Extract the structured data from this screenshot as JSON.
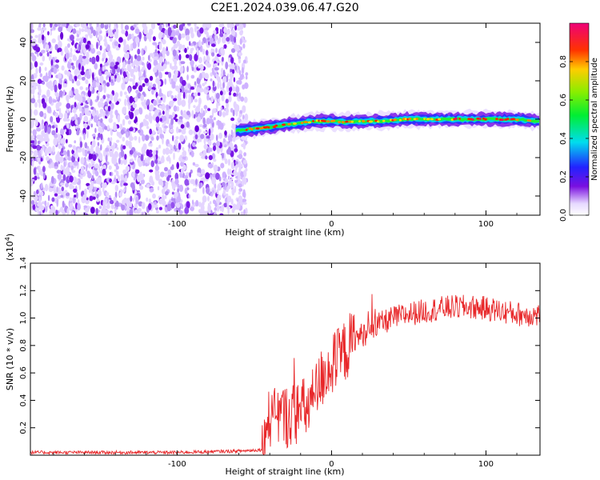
{
  "figure_title": "C2E1.2024.039.06.47.G20",
  "chart_data": [
    {
      "type": "heatmap",
      "title": "C2E1.2024.039.06.47.G20",
      "xlabel": "Height of straight line (km)",
      "ylabel": "Frequency (Hz)",
      "xlim": [
        -195,
        135
      ],
      "ylim": [
        -50,
        50
      ],
      "xticks": [
        -100,
        0,
        100
      ],
      "xtick_labels": [
        "-100",
        "0",
        "100"
      ],
      "yticks": [
        -40,
        -20,
        0,
        20,
        40
      ],
      "ytick_labels": [
        "-40",
        "-20",
        "0",
        "20",
        "40"
      ],
      "noise_region_x": [
        -195,
        -58
      ],
      "signal_ridge": {
        "x": [
          -62,
          -50,
          -40,
          -30,
          -20,
          -10,
          0,
          10,
          20,
          30,
          40,
          50,
          60,
          70,
          80,
          90,
          100,
          110,
          120,
          135
        ],
        "y": [
          -6,
          -5,
          -4,
          -3,
          -2,
          -1,
          -1,
          -1.5,
          -1,
          -1,
          -0.5,
          0,
          0,
          0,
          0,
          0,
          0,
          0,
          0,
          -1
        ]
      },
      "colorbar": {
        "label": "Normalized spectral amplitude",
        "range": [
          0.0,
          1.0
        ],
        "ticks": [
          0.0,
          0.2,
          0.4,
          0.6,
          0.8
        ],
        "tick_labels": [
          "0.0",
          "0.2",
          "0.4",
          "0.6",
          "0.8"
        ]
      },
      "grid": false
    },
    {
      "type": "line",
      "xlabel": "Height of straight line (km)",
      "ylabel": "SNR (10 * v/v)",
      "scale_label": "(x10",
      "scale_exponent": "4",
      "xlim": [
        -195,
        135
      ],
      "ylim": [
        0,
        1.4
      ],
      "xticks": [
        -100,
        0,
        100
      ],
      "xtick_labels": [
        "-100",
        "0",
        "100"
      ],
      "yticks": [
        0.2,
        0.4,
        0.6,
        0.8,
        1.0,
        1.2,
        1.4
      ],
      "ytick_labels": [
        "0.2",
        "0.4",
        "0.6",
        "0.8",
        "1.0",
        "1.2",
        "1.4"
      ],
      "series": [
        {
          "color": "#e8282a",
          "x": [
            -195,
            -150,
            -100,
            -60,
            -45,
            -42,
            -40,
            -38,
            -35,
            -30,
            -25,
            -20,
            -15,
            -10,
            -5,
            0,
            5,
            10,
            15,
            20,
            25,
            30,
            40,
            50,
            60,
            70,
            80,
            90,
            100,
            110,
            120,
            135
          ],
          "y": [
            0.02,
            0.02,
            0.02,
            0.03,
            0.04,
            0.15,
            0.3,
            0.22,
            0.3,
            0.28,
            0.3,
            0.32,
            0.35,
            0.45,
            0.6,
            0.65,
            0.7,
            0.78,
            0.85,
            0.88,
            0.9,
            0.95,
            1.0,
            1.03,
            1.05,
            1.07,
            1.08,
            1.08,
            1.07,
            1.05,
            1.03,
            1.02
          ]
        }
      ],
      "grid": false
    }
  ]
}
